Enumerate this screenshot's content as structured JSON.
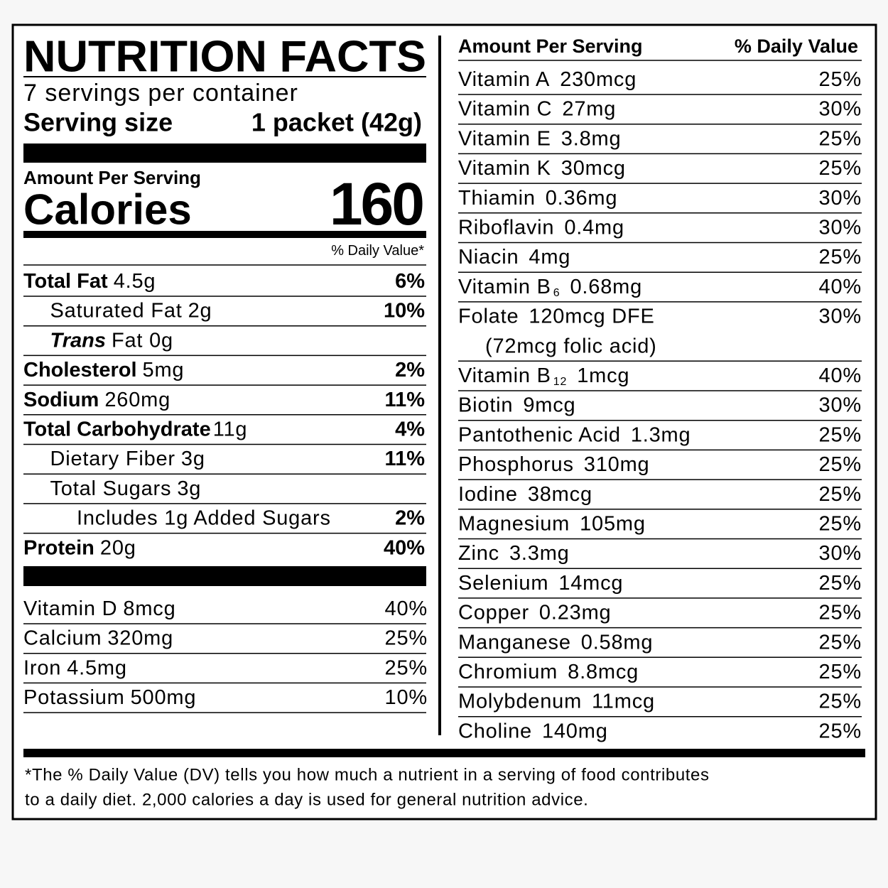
{
  "header": {
    "title": "NUTRITION FACTS",
    "servings": "7 servings per container",
    "serving_size_label": "Serving size",
    "serving_size": "1 packet (42g)"
  },
  "calories": {
    "amount_per_serving": "Amount Per Serving",
    "label": "Calories",
    "value": "160"
  },
  "dv_header": "% Daily Value*",
  "nutrients": [
    {
      "name": "Total Fat",
      "amount": "4.5g",
      "dv": "6%"
    },
    {
      "name": "Saturated Fat",
      "amount": "2g",
      "dv": "10%"
    },
    {
      "name": "Trans",
      "amount": "Fat 0g"
    },
    {
      "name": "Cholesterol",
      "amount": "5mg",
      "dv": "2%"
    },
    {
      "name": "Sodium",
      "amount": "260mg",
      "dv": "11%"
    },
    {
      "name": "Total Carbohydrate",
      "amount": "11g",
      "dv": "4%"
    },
    {
      "name": "Dietary Fiber",
      "amount": "3g",
      "dv": "11%"
    },
    {
      "name": "Total Sugars",
      "amount": "3g"
    },
    {
      "name": "Includes 1g Added Sugars",
      "dv": "2%"
    },
    {
      "name": "Protein",
      "amount": "20g",
      "dv": "40%"
    }
  ],
  "vitamins_left": [
    {
      "name": "Vitamin D",
      "amount": "8mcg",
      "dv": "40%"
    },
    {
      "name": "Calcium",
      "amount": "320mg",
      "dv": "25%"
    },
    {
      "name": "Iron",
      "amount": "4.5mg",
      "dv": "25%"
    },
    {
      "name": "Potassium",
      "amount": "500mg",
      "dv": "10%"
    }
  ],
  "right_header": {
    "amount_per_serving": "Amount Per Serving",
    "daily_value": "% Daily Value"
  },
  "vitamins_right": [
    {
      "name": "Vitamin A",
      "amount": "230mcg",
      "dv": "25%"
    },
    {
      "name": "Vitamin C",
      "amount": "27mg",
      "dv": "30%"
    },
    {
      "name": "Vitamin E",
      "amount": "3.8mg",
      "dv": "25%"
    },
    {
      "name": "Vitamin K",
      "amount": "30mcg",
      "dv": "25%"
    },
    {
      "name": "Thiamin",
      "amount": "0.36mg",
      "dv": "30%"
    },
    {
      "name": "Riboflavin",
      "amount": "0.4mg",
      "dv": "30%"
    },
    {
      "name": "Niacin",
      "amount": "4mg",
      "dv": "25%"
    },
    {
      "name": "Vitamin B",
      "subscript": "6",
      "amount": "0.68mg",
      "dv": "40%"
    },
    {
      "name": "Folate",
      "amount": "120mcg DFE",
      "note": "(72mcg folic acid)",
      "dv": "30%"
    },
    {
      "name": "Vitamin B",
      "subscript": "12",
      "amount": "1mcg",
      "dv": "40%"
    },
    {
      "name": "Biotin",
      "amount": "9mcg",
      "dv": "30%"
    },
    {
      "name": "Pantothenic Acid",
      "amount": "1.3mg",
      "dv": "25%"
    },
    {
      "name": "Phosphorus",
      "amount": "310mg",
      "dv": "25%"
    },
    {
      "name": "Iodine",
      "amount": "38mcg",
      "dv": "25%"
    },
    {
      "name": "Magnesium",
      "amount": "105mg",
      "dv": "25%"
    },
    {
      "name": "Zinc",
      "amount": "3.3mg",
      "dv": "30%"
    },
    {
      "name": "Selenium",
      "amount": "14mcg",
      "dv": "25%"
    },
    {
      "name": "Copper",
      "amount": "0.23mg",
      "dv": "25%"
    },
    {
      "name": "Manganese",
      "amount": "0.58mg",
      "dv": "25%"
    },
    {
      "name": "Chromium",
      "amount": "8.8mcg",
      "dv": "25%"
    },
    {
      "name": "Molybdenum",
      "amount": "11mcg",
      "dv": "25%"
    },
    {
      "name": "Choline",
      "amount": "140mg",
      "dv": "25%"
    }
  ],
  "footnote": [
    "*The % Daily Value (DV) tells you how much a nutrient in a serving of food contributes",
    "to a daily diet. 2,000 calories a day is used for general nutrition advice."
  ]
}
